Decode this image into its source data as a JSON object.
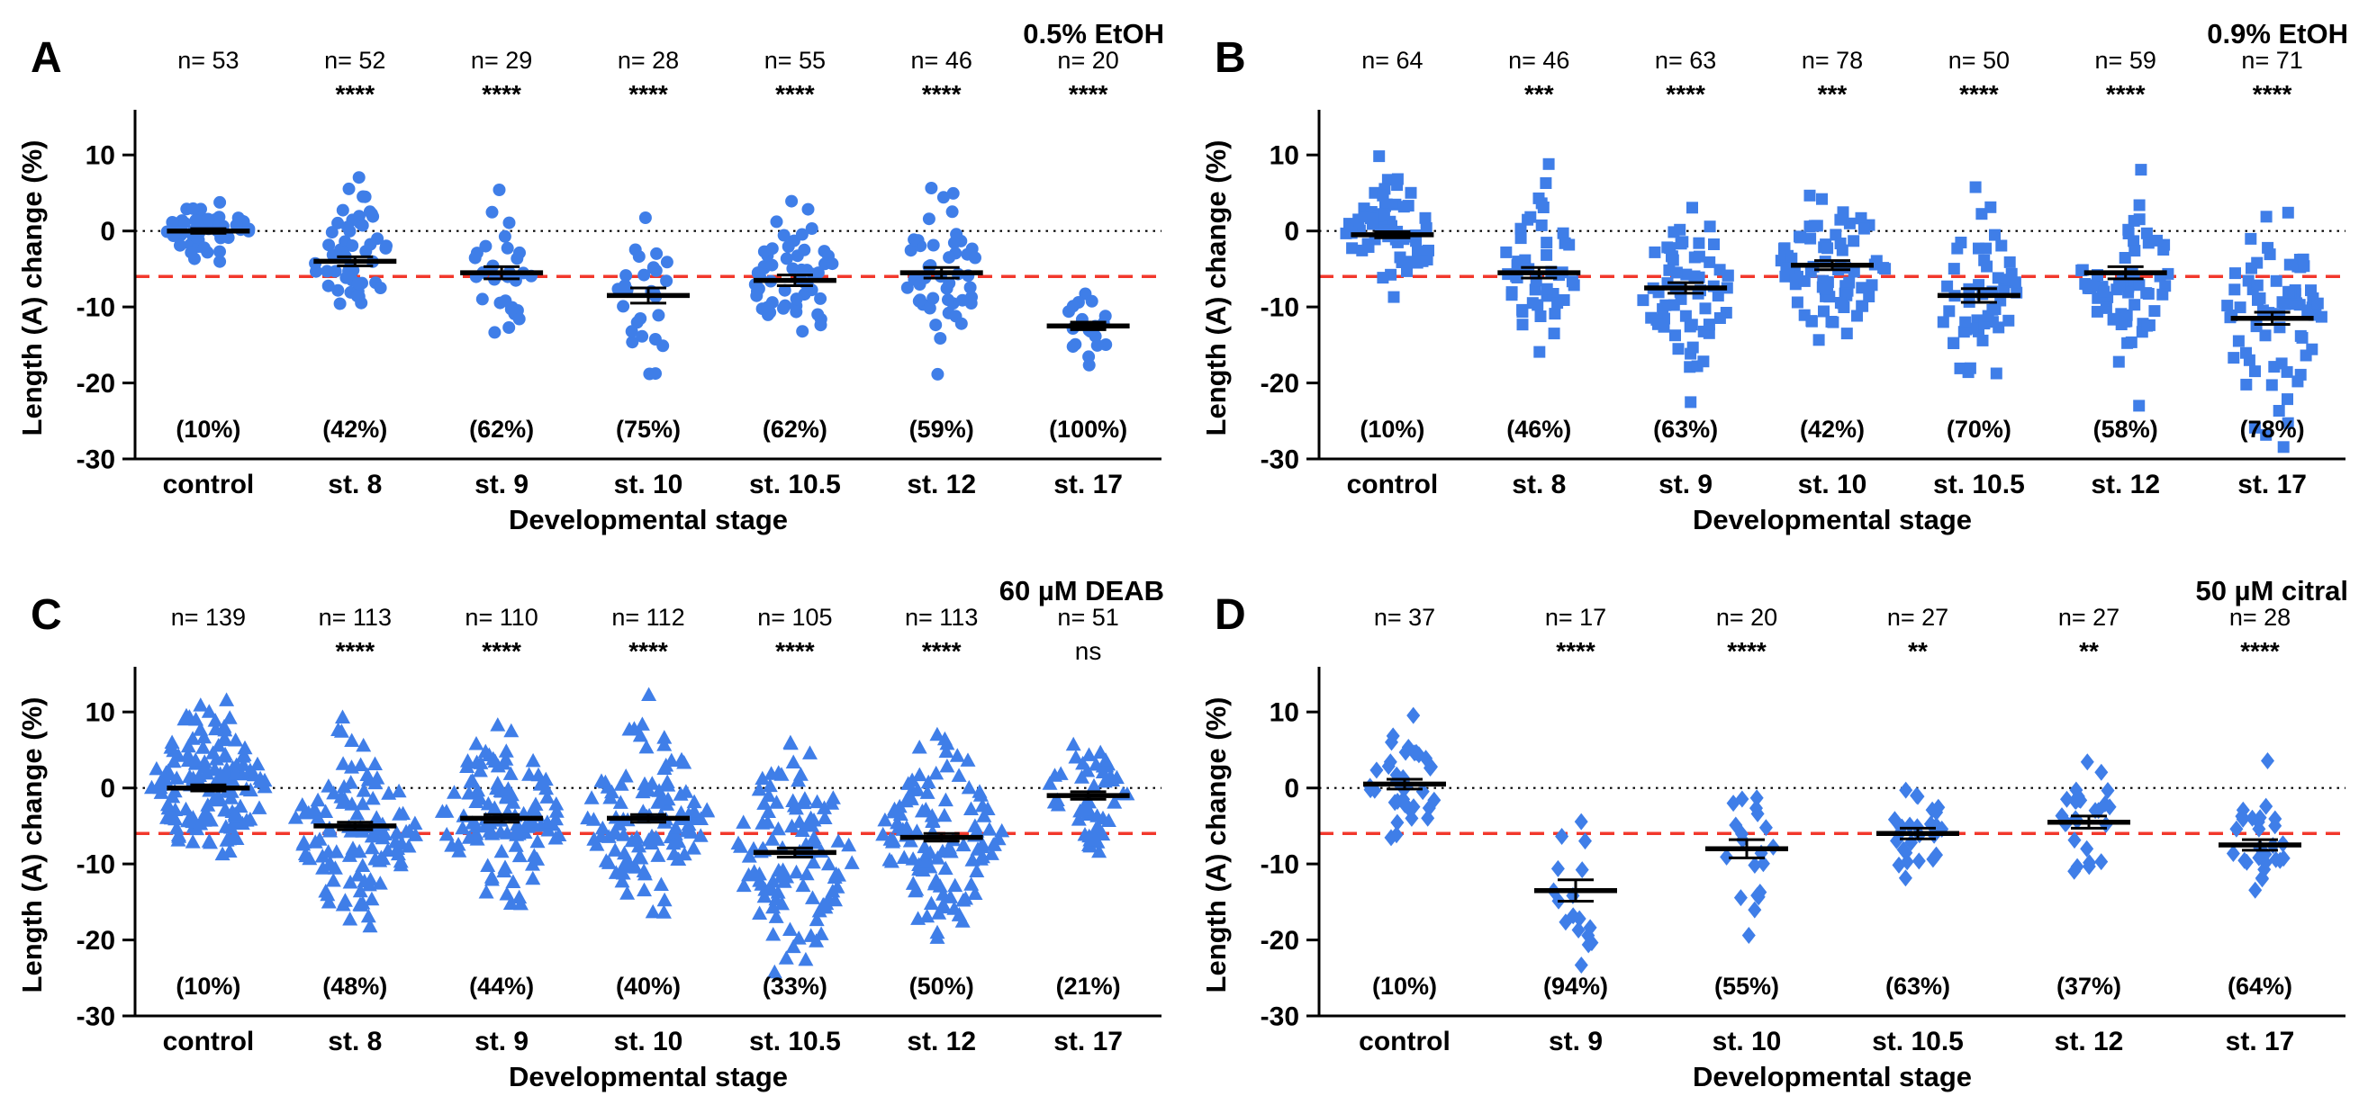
{
  "figure": {
    "layout": "2x2-panel-grid",
    "background": "#ffffff"
  },
  "colors": {
    "marker_blue": "#3f7ee8",
    "percent_red": "#f50000",
    "threshold_line_red": "#f2382c",
    "axis_black": "#000000"
  },
  "chart_data": [
    {
      "panel_label": "A",
      "condition": "0.5% EtOH",
      "type": "scatter",
      "marker": "circle",
      "xlabel": "Developmental stage",
      "ylabel": "Length (A) change (%)",
      "ylim": [
        -30,
        15
      ],
      "yticks": [
        10,
        0,
        -10,
        -20,
        -30
      ],
      "reference_lines": {
        "zero_dotted": 0,
        "red_dashed": -6
      },
      "categories": [
        "control",
        "st. 8",
        "st. 9",
        "st. 10",
        "st. 10.5",
        "st. 12",
        "st. 17"
      ],
      "n": [
        53,
        52,
        29,
        28,
        55,
        46,
        20
      ],
      "significance": [
        "",
        "****",
        "****",
        "****",
        "****",
        "****",
        "****"
      ],
      "percent_labels": [
        "(10%)",
        "(42%)",
        "(62%)",
        "(75%)",
        "(62%)",
        "(59%)",
        "(100%)"
      ],
      "mean": [
        0,
        -4,
        -5.5,
        -8.5,
        -6.5,
        -5.5,
        -12.5
      ],
      "sem": [
        0.3,
        0.6,
        0.8,
        1.0,
        0.7,
        0.7,
        0.5
      ],
      "sd": [
        2,
        4,
        4.5,
        5,
        5,
        4.5,
        2.2
      ]
    },
    {
      "panel_label": "B",
      "condition": "0.9% EtOH",
      "type": "scatter",
      "marker": "square",
      "xlabel": "Developmental stage",
      "ylabel": "Length (A) change (%)",
      "ylim": [
        -30,
        15
      ],
      "yticks": [
        10,
        0,
        -10,
        -20,
        -30
      ],
      "reference_lines": {
        "zero_dotted": 0,
        "red_dashed": -6
      },
      "categories": [
        "control",
        "st. 8",
        "st. 9",
        "st. 10",
        "st. 10.5",
        "st. 12",
        "st. 17"
      ],
      "n": [
        64,
        46,
        63,
        78,
        50,
        59,
        71
      ],
      "significance": [
        "",
        "***",
        "****",
        "***",
        "****",
        "****",
        "****"
      ],
      "percent_labels": [
        "(10%)",
        "(46%)",
        "(63%)",
        "(42%)",
        "(70%)",
        "(58%)",
        "(78%)"
      ],
      "mean": [
        -0.5,
        -5.5,
        -7.5,
        -4.5,
        -8.5,
        -5.5,
        -11.5
      ],
      "sem": [
        0.4,
        0.7,
        0.7,
        0.6,
        0.9,
        0.8,
        0.8
      ],
      "sd": [
        3.5,
        4.5,
        5.5,
        5,
        6,
        6,
        6.5
      ]
    },
    {
      "panel_label": "C",
      "condition": "60 µM DEAB",
      "type": "scatter",
      "marker": "triangle",
      "xlabel": "Developmental stage",
      "ylabel": "Length (A) change (%)",
      "ylim": [
        -30,
        15
      ],
      "yticks": [
        10,
        0,
        -10,
        -20,
        -30
      ],
      "reference_lines": {
        "zero_dotted": 0,
        "red_dashed": -6
      },
      "categories": [
        "control",
        "st. 8",
        "st. 9",
        "st. 10",
        "st. 10.5",
        "st. 12",
        "st. 17"
      ],
      "n": [
        139,
        113,
        110,
        112,
        105,
        113,
        51
      ],
      "significance": [
        "",
        "****",
        "****",
        "****",
        "****",
        "****",
        "ns"
      ],
      "percent_labels": [
        "(10%)",
        "(48%)",
        "(44%)",
        "(40%)",
        "(33%)",
        "(50%)",
        "(21%)"
      ],
      "mean": [
        0,
        -5,
        -4,
        -4,
        -8.5,
        -6.5,
        -1
      ],
      "sem": [
        0.4,
        0.5,
        0.5,
        0.5,
        0.6,
        0.5,
        0.5
      ],
      "sd": [
        4.5,
        5.5,
        5.5,
        5.5,
        6.5,
        5.5,
        3.5
      ]
    },
    {
      "panel_label": "D",
      "condition": "50 µM citral",
      "type": "scatter",
      "marker": "diamond",
      "xlabel": "Developmental stage",
      "ylabel": "Length (A) change (%)",
      "ylim": [
        -30,
        15
      ],
      "yticks": [
        10,
        0,
        -10,
        -20,
        -30
      ],
      "reference_lines": {
        "zero_dotted": 0,
        "red_dashed": -6
      },
      "categories": [
        "control",
        "st. 9",
        "st. 10",
        "st. 10.5",
        "st. 12",
        "st. 17"
      ],
      "n": [
        37,
        17,
        20,
        27,
        27,
        28
      ],
      "significance": [
        "",
        "****",
        "****",
        "**",
        "**",
        "****"
      ],
      "percent_labels": [
        "(10%)",
        "(94%)",
        "(55%)",
        "(63%)",
        "(37%)",
        "(64%)"
      ],
      "mean": [
        0.5,
        -13.5,
        -8,
        -6,
        -4.5,
        -7.5
      ],
      "sem": [
        0.65,
        1.4,
        1.2,
        0.7,
        0.8,
        0.7
      ],
      "sd": [
        4,
        6,
        5.5,
        3.5,
        4,
        3.5
      ]
    }
  ]
}
